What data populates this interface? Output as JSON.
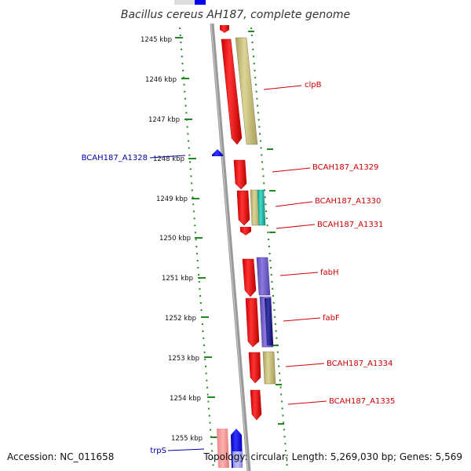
{
  "title": "Bacillus cereus AH187, complete genome",
  "footer": {
    "accession": "Accession: NC_011658",
    "summary": "Topology: circular; Length: 5,269,030 bp; Genes: 5,569"
  },
  "ticks": [
    "1245 kbp",
    "1246 kbp",
    "1247 kbp",
    "1248 kbp",
    "1249 kbp",
    "1250 kbp",
    "1251 kbp",
    "1252 kbp",
    "1253 kbp",
    "1254 kbp",
    "1255 kbp"
  ],
  "genes": [
    {
      "label": "clpB",
      "color": "red"
    },
    {
      "label": "BCAH187_A1329",
      "color": "red"
    },
    {
      "label": "BCAH187_A1330",
      "color": "red"
    },
    {
      "label": "BCAH187_A1331",
      "color": "red"
    },
    {
      "label": "fabH",
      "color": "red"
    },
    {
      "label": "fabF",
      "color": "red"
    },
    {
      "label": "BCAH187_A1334",
      "color": "red"
    },
    {
      "label": "BCAH187_A1335",
      "color": "red"
    },
    {
      "label": "BCAH187_A1328",
      "color": "blue"
    },
    {
      "label": "trpS",
      "color": "blue"
    }
  ],
  "colors": {
    "forward_cds": "#ee0000",
    "reverse_cds": "#0000ee",
    "backbone": "#888888",
    "tick": "#228822",
    "olive": "#c8bf7a",
    "purple": "#7a66cc",
    "navy": "#1a1a88",
    "teal": "#22bbaa"
  }
}
